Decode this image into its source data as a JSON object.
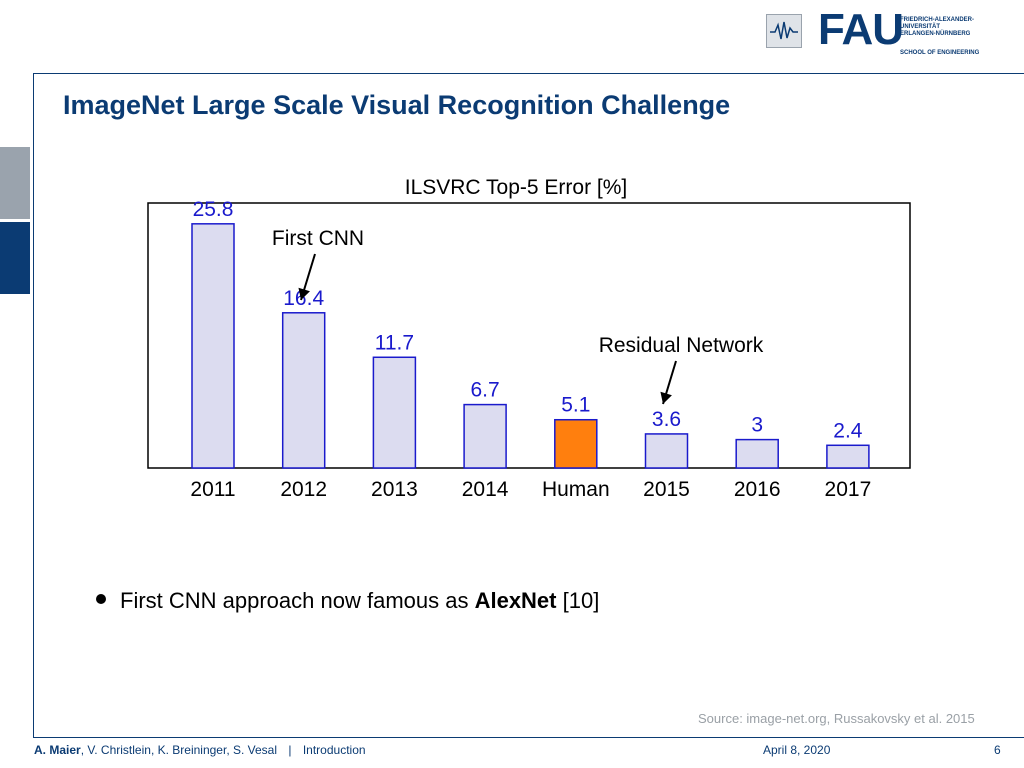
{
  "header": {
    "logo_text": "FAU",
    "university_lines": [
      "FRIEDRICH-ALEXANDER-",
      "UNIVERSITÄT",
      "ERLANGEN-NÜRNBERG"
    ],
    "school": "SCHOOL OF ENGINEERING"
  },
  "slide": {
    "title": "ImageNet Large Scale Visual Recognition Challenge",
    "bullet_prefix": "First CNN approach now famous as ",
    "bullet_bold": "AlexNet",
    "bullet_ref": " [10]",
    "source": "Source: image-net.org, Russakovsky et al. 2015"
  },
  "footer": {
    "author_main": "A. Maier",
    "authors_rest": ", V. Christlein, K. Breininger, S. Vesal",
    "separator": "|",
    "section": "Introduction",
    "date": "April 8, 2020",
    "page": "6"
  },
  "chart_data": {
    "type": "bar",
    "title": "ILSVRC Top-5 Error [%]",
    "categories": [
      "2011",
      "2012",
      "2013",
      "2014",
      "Human",
      "2015",
      "2016",
      "2017"
    ],
    "values": [
      25.8,
      16.4,
      11.7,
      6.7,
      5.1,
      3.6,
      3,
      2.4
    ],
    "value_labels": [
      "25.8",
      "16.4",
      "11.7",
      "6.7",
      "5.1",
      "3.6",
      "3",
      "2.4"
    ],
    "ylim": [
      0,
      28
    ],
    "grid": false,
    "colors": {
      "bar_fill": "#dcdcf0",
      "bar_stroke": "#1a1acc",
      "highlight_fill": "#ff7f0e",
      "highlight_stroke": "#1a1acc",
      "value_label": "#1a1acc"
    },
    "highlight_category": "Human",
    "annotations": [
      {
        "text": "First CNN",
        "target": "2012"
      },
      {
        "text": "Residual Network",
        "target": "2015"
      }
    ]
  },
  "colors": {
    "brand": "#0b3b73",
    "accent_grey": "#9aa3ad"
  }
}
